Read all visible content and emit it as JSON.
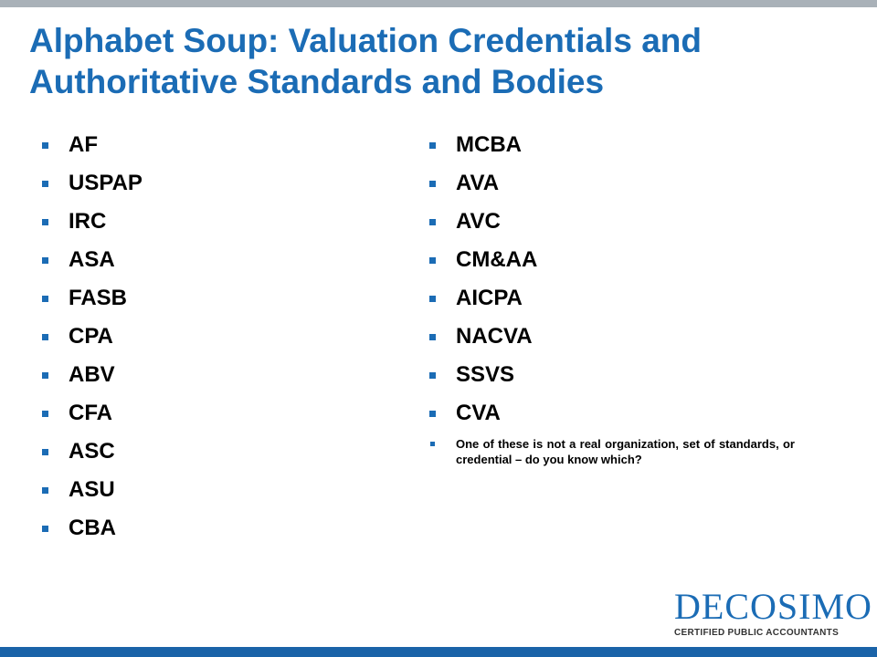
{
  "slide": {
    "title_line1": "Alphabet Soup: Valuation Credentials and",
    "title_line2": "Authoritative Standards and Bodies"
  },
  "left_list": [
    "AF",
    "USPAP",
    "IRC",
    "ASA",
    "FASB",
    "CPA",
    "ABV",
    "CFA",
    "ASC",
    "ASU",
    "CBA"
  ],
  "right_list": [
    "MCBA",
    "AVA",
    "AVC",
    "CM&AA",
    "AICPA",
    "NACVA",
    "SSVS",
    "CVA"
  ],
  "note": "One of these is not a real organization, set of standards, or credential – do you know which?",
  "logo": {
    "name": "DECOSIMO",
    "tagline": "CERTIFIED PUBLIC ACCOUNTANTS"
  },
  "colors": {
    "accent": "#1b6cb5",
    "top_bar": "#a9b1b8",
    "bottom_bar": "#1a63a8",
    "text": "#000000"
  },
  "icons": {
    "bullet": "square-bullet-icon"
  }
}
